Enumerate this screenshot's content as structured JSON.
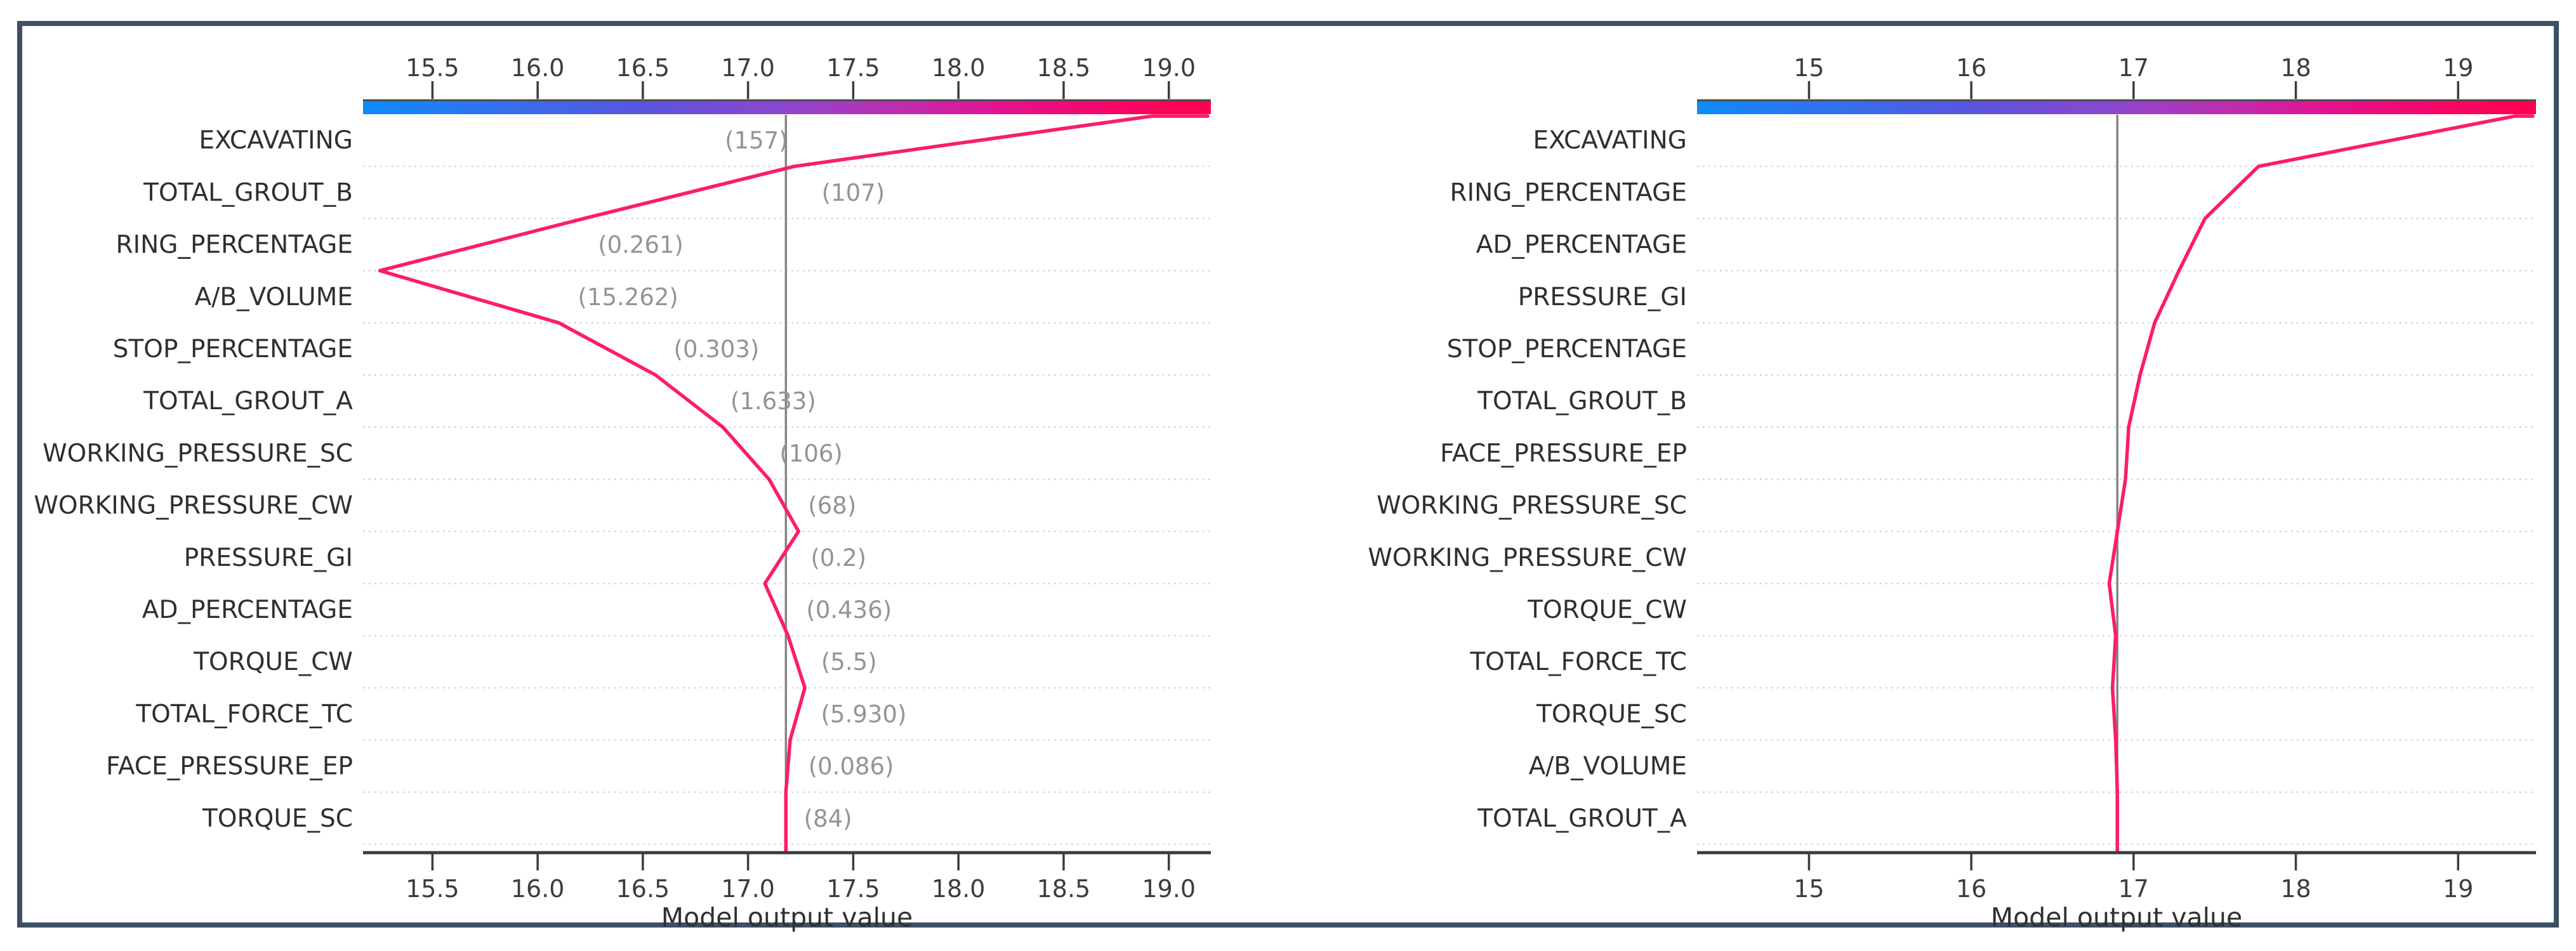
{
  "figure": {
    "background": "#ffffff",
    "border_color": "#3d5066",
    "line_color": "#fb1d68",
    "base_line_color": "#848484",
    "grid_color": "#cdcdcd",
    "axis_color": "#3c3c3c",
    "feature_label_color": "#2f2f2f",
    "value_label_color": "#949494"
  },
  "chart_data": [
    {
      "type": "line",
      "variant": "shap-decision-plot",
      "position": "left",
      "xlabel": "Model output value",
      "x_range": [
        15.17,
        19.2
      ],
      "x_ticks": [
        {
          "label": "15.5",
          "value": 15.5
        },
        {
          "label": "16.0",
          "value": 16.0
        },
        {
          "label": "16.5",
          "value": 16.5
        },
        {
          "label": "17.0",
          "value": 17.0
        },
        {
          "label": "17.5",
          "value": 17.5
        },
        {
          "label": "18.0",
          "value": 18.0
        },
        {
          "label": "18.5",
          "value": 18.5
        },
        {
          "label": "19.0",
          "value": 19.0
        }
      ],
      "grid": true,
      "legend": "none",
      "base_value": 17.18,
      "final_value": 18.92,
      "colorbar": {
        "stops": [
          {
            "offset": 0,
            "color": "#0d8bfb"
          },
          {
            "offset": 0.33,
            "color": "#5a55e0"
          },
          {
            "offset": 0.5,
            "color": "#8d46cf"
          },
          {
            "offset": 0.62,
            "color": "#bb2fb4"
          },
          {
            "offset": 0.75,
            "color": "#e21390"
          },
          {
            "offset": 0.88,
            "color": "#f70668"
          },
          {
            "offset": 1,
            "color": "#fd034e"
          }
        ]
      },
      "features_top_to_bottom": [
        {
          "name": "EXCAVATING",
          "shown_value": "(157)",
          "cumulative": 17.22,
          "value_label_x": 17.04
        },
        {
          "name": "TOTAL_GROUT_B",
          "shown_value": "(107)",
          "cumulative": 16.22,
          "value_label_x": 17.5
        },
        {
          "name": "RING_PERCENTAGE",
          "shown_value": "(0.261)",
          "cumulative": 15.25,
          "value_label_x": 16.49
        },
        {
          "name": "A/B_VOLUME",
          "shown_value": "(15.262)",
          "cumulative": 16.1,
          "value_label_x": 16.43
        },
        {
          "name": "STOP_PERCENTAGE",
          "shown_value": "(0.303)",
          "cumulative": 16.56,
          "value_label_x": 16.85
        },
        {
          "name": "TOTAL_GROUT_A",
          "shown_value": "(1.633)",
          "cumulative": 16.88,
          "value_label_x": 17.12
        },
        {
          "name": "WORKING_PRESSURE_SC",
          "shown_value": "(106)",
          "cumulative": 17.1,
          "value_label_x": 17.3
        },
        {
          "name": "WORKING_PRESSURE_CW",
          "shown_value": "(68)",
          "cumulative": 17.24,
          "value_label_x": 17.4
        },
        {
          "name": "PRESSURE_GI",
          "shown_value": "(0.2)",
          "cumulative": 17.08,
          "value_label_x": 17.43
        },
        {
          "name": "AD_PERCENTAGE",
          "shown_value": "(0.436)",
          "cumulative": 17.19,
          "value_label_x": 17.48
        },
        {
          "name": "TORQUE_CW",
          "shown_value": "(5.5)",
          "cumulative": 17.27,
          "value_label_x": 17.48
        },
        {
          "name": "TOTAL_FORCE_TC",
          "shown_value": "(5.930)",
          "cumulative": 17.2,
          "value_label_x": 17.55
        },
        {
          "name": "FACE_PRESSURE_EP",
          "shown_value": "(0.086)",
          "cumulative": 17.18,
          "value_label_x": 17.49
        },
        {
          "name": "TORQUE_SC",
          "shown_value": "(84)",
          "cumulative": 17.18,
          "value_label_x": 17.38
        }
      ]
    },
    {
      "type": "line",
      "variant": "shap-decision-plot",
      "position": "right",
      "xlabel": "Model output value",
      "x_range": [
        14.31,
        19.48
      ],
      "x_ticks": [
        {
          "label": "15",
          "value": 15
        },
        {
          "label": "16",
          "value": 16
        },
        {
          "label": "17",
          "value": 17
        },
        {
          "label": "18",
          "value": 18
        },
        {
          "label": "19",
          "value": 19
        }
      ],
      "grid": true,
      "legend": "none",
      "base_value": 16.9,
      "final_value": 19.35,
      "colorbar": {
        "stops": [
          {
            "offset": 0,
            "color": "#0d8bfb"
          },
          {
            "offset": 0.33,
            "color": "#5a55e0"
          },
          {
            "offset": 0.5,
            "color": "#8d46cf"
          },
          {
            "offset": 0.62,
            "color": "#bb2fb4"
          },
          {
            "offset": 0.75,
            "color": "#e21390"
          },
          {
            "offset": 0.88,
            "color": "#f70668"
          },
          {
            "offset": 1,
            "color": "#fd034e"
          }
        ]
      },
      "features_top_to_bottom": [
        {
          "name": "EXCAVATING",
          "cumulative": 17.77
        },
        {
          "name": "RING_PERCENTAGE",
          "cumulative": 17.44
        },
        {
          "name": "AD_PERCENTAGE",
          "cumulative": 17.28
        },
        {
          "name": "PRESSURE_GI",
          "cumulative": 17.13
        },
        {
          "name": "STOP_PERCENTAGE",
          "cumulative": 17.04
        },
        {
          "name": "TOTAL_GROUT_B",
          "cumulative": 16.97
        },
        {
          "name": "FACE_PRESSURE_EP",
          "cumulative": 16.95
        },
        {
          "name": "WORKING_PRESSURE_SC",
          "cumulative": 16.9
        },
        {
          "name": "WORKING_PRESSURE_CW",
          "cumulative": 16.85
        },
        {
          "name": "TORQUE_CW",
          "cumulative": 16.89
        },
        {
          "name": "TOTAL_FORCE_TC",
          "cumulative": 16.87
        },
        {
          "name": "TORQUE_SC",
          "cumulative": 16.89
        },
        {
          "name": "A/B_VOLUME",
          "cumulative": 16.9
        },
        {
          "name": "TOTAL_GROUT_A",
          "cumulative": 16.9
        }
      ]
    }
  ]
}
